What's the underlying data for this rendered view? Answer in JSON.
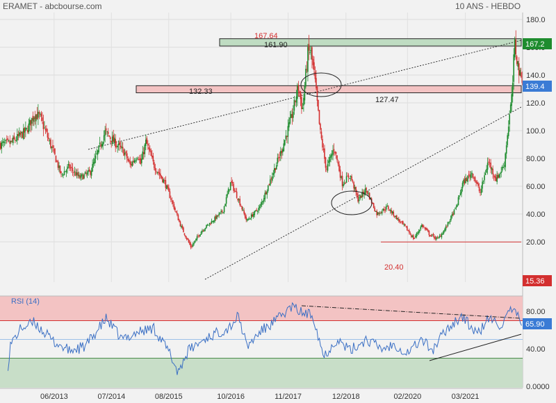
{
  "header": {
    "left": "ERAMET - abcbourse.com",
    "right": "10 ANS - HEBDO"
  },
  "chart_data": [
    {
      "type": "candlestick",
      "ylim": [
        0,
        180
      ],
      "yticks": [
        "180.0",
        "160.0",
        "140.0",
        "120.0",
        "100.0",
        "80.00",
        "60.00",
        "40.00",
        "20.00"
      ],
      "ytick_values": [
        180,
        160,
        140,
        120,
        100,
        80,
        60,
        40,
        20
      ],
      "x_ticks": [
        "06/2013",
        "07/2014",
        "08/2015",
        "10/2016",
        "11/2017",
        "12/2018",
        "02/2020",
        "03/2021"
      ],
      "x_tick_dates": [
        2013.42,
        2014.5,
        2015.58,
        2016.75,
        2017.83,
        2018.92,
        2020.08,
        2021.17
      ],
      "x_range": [
        2012.4,
        2022.25
      ],
      "series_key_points": [
        {
          "x": 2012.4,
          "y": 90
        },
        {
          "x": 2012.6,
          "y": 91
        },
        {
          "x": 2012.9,
          "y": 100
        },
        {
          "x": 2013.05,
          "y": 112
        },
        {
          "x": 2013.15,
          "y": 110
        },
        {
          "x": 2013.3,
          "y": 95
        },
        {
          "x": 2013.45,
          "y": 80
        },
        {
          "x": 2013.55,
          "y": 68
        },
        {
          "x": 2013.7,
          "y": 74
        },
        {
          "x": 2013.9,
          "y": 66
        },
        {
          "x": 2014.1,
          "y": 70
        },
        {
          "x": 2014.2,
          "y": 80
        },
        {
          "x": 2014.38,
          "y": 99
        },
        {
          "x": 2014.55,
          "y": 92
        },
        {
          "x": 2014.75,
          "y": 84
        },
        {
          "x": 2014.85,
          "y": 75
        },
        {
          "x": 2015.0,
          "y": 83
        },
        {
          "x": 2015.05,
          "y": 76
        },
        {
          "x": 2015.15,
          "y": 92
        },
        {
          "x": 2015.3,
          "y": 75
        },
        {
          "x": 2015.5,
          "y": 63
        },
        {
          "x": 2015.65,
          "y": 48
        },
        {
          "x": 2015.8,
          "y": 32
        },
        {
          "x": 2016.0,
          "y": 16
        },
        {
          "x": 2016.2,
          "y": 28
        },
        {
          "x": 2016.4,
          "y": 35
        },
        {
          "x": 2016.6,
          "y": 42
        },
        {
          "x": 2016.75,
          "y": 63
        },
        {
          "x": 2016.9,
          "y": 50
        },
        {
          "x": 2017.05,
          "y": 35
        },
        {
          "x": 2017.3,
          "y": 45
        },
        {
          "x": 2017.5,
          "y": 65
        },
        {
          "x": 2017.7,
          "y": 85
        },
        {
          "x": 2017.9,
          "y": 110
        },
        {
          "x": 2018.02,
          "y": 132
        },
        {
          "x": 2018.1,
          "y": 115
        },
        {
          "x": 2018.2,
          "y": 155
        },
        {
          "x": 2018.25,
          "y": 158
        },
        {
          "x": 2018.33,
          "y": 138
        },
        {
          "x": 2018.43,
          "y": 100
        },
        {
          "x": 2018.55,
          "y": 72
        },
        {
          "x": 2018.7,
          "y": 88
        },
        {
          "x": 2018.85,
          "y": 62
        },
        {
          "x": 2019.0,
          "y": 68
        },
        {
          "x": 2019.15,
          "y": 50
        },
        {
          "x": 2019.3,
          "y": 58
        },
        {
          "x": 2019.5,
          "y": 40
        },
        {
          "x": 2019.7,
          "y": 45
        },
        {
          "x": 2019.9,
          "y": 36
        },
        {
          "x": 2020.05,
          "y": 30
        },
        {
          "x": 2020.2,
          "y": 22
        },
        {
          "x": 2020.35,
          "y": 32
        },
        {
          "x": 2020.5,
          "y": 25
        },
        {
          "x": 2020.65,
          "y": 22
        },
        {
          "x": 2020.8,
          "y": 30
        },
        {
          "x": 2021.0,
          "y": 45
        },
        {
          "x": 2021.12,
          "y": 62
        },
        {
          "x": 2021.3,
          "y": 70
        },
        {
          "x": 2021.45,
          "y": 55
        },
        {
          "x": 2021.6,
          "y": 78
        },
        {
          "x": 2021.75,
          "y": 65
        },
        {
          "x": 2021.9,
          "y": 75
        },
        {
          "x": 2022.0,
          "y": 110
        },
        {
          "x": 2022.05,
          "y": 125
        },
        {
          "x": 2022.1,
          "y": 163
        },
        {
          "x": 2022.15,
          "y": 150
        },
        {
          "x": 2022.2,
          "y": 139
        }
      ],
      "levels": [
        {
          "label": "167.64",
          "value": 167.64,
          "color": "#d32f2f"
        },
        {
          "label": "161.90",
          "value": 161.9
        },
        {
          "label": "132.33",
          "value": 132.33
        },
        {
          "label": "127.47",
          "value": 127.47
        },
        {
          "label": "20.40",
          "value": 20.4,
          "color": "#d32f2f"
        }
      ],
      "price_badges": [
        {
          "label": "167.2",
          "value": 167.2,
          "color": "#1e8c2e"
        },
        {
          "label": "139.4",
          "value": 139.4,
          "color": "#3a7bd5"
        },
        {
          "label": "15.36",
          "value": 15.36,
          "color": "#d32f2f"
        }
      ]
    },
    {
      "type": "line",
      "title": "RSI (14)",
      "ylim": [
        0,
        100
      ],
      "yticks": [
        "80.00",
        "40.00",
        "0.0000"
      ],
      "ytick_values": [
        80,
        40,
        0
      ],
      "overbought": 70,
      "oversold": 30,
      "midline": 50,
      "last_value": {
        "label": "65.90",
        "value": 65.9,
        "color": "#3a7bd5"
      },
      "series_key_points": [
        {
          "x": 2012.4,
          "y": 28
        },
        {
          "x": 2012.5,
          "y": 0
        },
        {
          "x": 2012.6,
          "y": 45
        },
        {
          "x": 2012.8,
          "y": 62
        },
        {
          "x": 2013.05,
          "y": 68
        },
        {
          "x": 2013.4,
          "y": 48
        },
        {
          "x": 2013.7,
          "y": 38
        },
        {
          "x": 2014.0,
          "y": 42
        },
        {
          "x": 2014.4,
          "y": 72
        },
        {
          "x": 2014.7,
          "y": 50
        },
        {
          "x": 2015.0,
          "y": 58
        },
        {
          "x": 2015.3,
          "y": 62
        },
        {
          "x": 2015.6,
          "y": 35
        },
        {
          "x": 2015.75,
          "y": 15
        },
        {
          "x": 2015.95,
          "y": 38
        },
        {
          "x": 2016.3,
          "y": 52
        },
        {
          "x": 2016.7,
          "y": 62
        },
        {
          "x": 2016.9,
          "y": 75
        },
        {
          "x": 2017.05,
          "y": 42
        },
        {
          "x": 2017.3,
          "y": 58
        },
        {
          "x": 2017.6,
          "y": 70
        },
        {
          "x": 2017.9,
          "y": 85
        },
        {
          "x": 2018.1,
          "y": 78
        },
        {
          "x": 2018.3,
          "y": 76
        },
        {
          "x": 2018.5,
          "y": 32
        },
        {
          "x": 2018.75,
          "y": 50
        },
        {
          "x": 2019.0,
          "y": 38
        },
        {
          "x": 2019.3,
          "y": 50
        },
        {
          "x": 2019.6,
          "y": 40
        },
        {
          "x": 2019.85,
          "y": 45
        },
        {
          "x": 2020.05,
          "y": 35
        },
        {
          "x": 2020.35,
          "y": 50
        },
        {
          "x": 2020.55,
          "y": 38
        },
        {
          "x": 2020.8,
          "y": 60
        },
        {
          "x": 2021.1,
          "y": 75
        },
        {
          "x": 2021.4,
          "y": 55
        },
        {
          "x": 2021.6,
          "y": 72
        },
        {
          "x": 2021.85,
          "y": 65
        },
        {
          "x": 2022.05,
          "y": 82
        },
        {
          "x": 2022.15,
          "y": 75
        },
        {
          "x": 2022.2,
          "y": 65.9
        }
      ]
    }
  ]
}
